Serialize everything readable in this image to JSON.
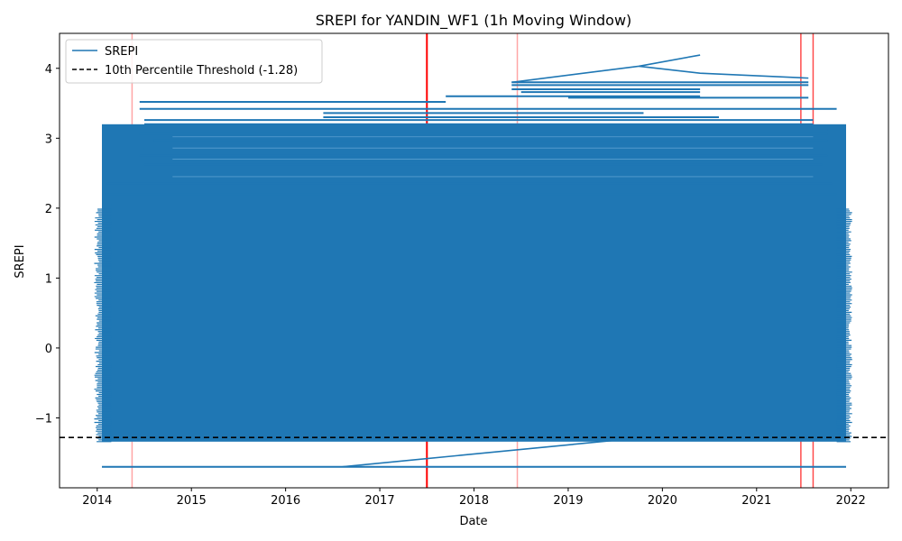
{
  "chart_data": {
    "type": "line",
    "title": "SREPI for YANDIN_WF1 (1h Moving Window)",
    "xlabel": "Date",
    "ylabel": "SREPI",
    "x_ticks": [
      "2014",
      "2015",
      "2016",
      "2017",
      "2018",
      "2019",
      "2020",
      "2021",
      "2022"
    ],
    "x_tick_values": [
      2014,
      2015,
      2016,
      2017,
      2018,
      2019,
      2020,
      2021,
      2022
    ],
    "y_ticks": [
      "−1",
      "0",
      "1",
      "2",
      "3",
      "4"
    ],
    "y_tick_values": [
      -1,
      0,
      1,
      2,
      3,
      4
    ],
    "xlim": [
      2013.6,
      2022.4
    ],
    "ylim": [
      -2.0,
      4.5
    ],
    "grid": false,
    "legend_position": "top-left",
    "series": [
      {
        "name": "SREPI",
        "color": "#1f77b4",
        "style": "solid",
        "band_x_range": [
          2014.05,
          2021.95
        ],
        "band_y_range": [
          -1.34,
          3.2
        ],
        "bottom_line_y": -1.7,
        "outlier_points": [
          {
            "x": 2019.75,
            "y": 4.03
          },
          {
            "x": 2020.4,
            "y": 4.19
          },
          {
            "x": 2020.4,
            "y": 3.93
          },
          {
            "x": 2021.55,
            "y": 3.86
          },
          {
            "x": 2019.5,
            "y": -1.32
          },
          {
            "x": 2016.6,
            "y": -1.7
          }
        ]
      },
      {
        "name": "10th Percentile Threshold (-1.28)",
        "color": "#000000",
        "style": "dashed",
        "y": -1.28
      }
    ],
    "event_lines": [
      {
        "x": 2014.37,
        "color": "#ff0000",
        "strength": "faint"
      },
      {
        "x": 2017.5,
        "color": "#ff0000",
        "strength": "strong"
      },
      {
        "x": 2018.46,
        "color": "#ff0000",
        "strength": "faint"
      },
      {
        "x": 2021.47,
        "color": "#ff0000",
        "strength": "medium"
      },
      {
        "x": 2021.6,
        "color": "#ff0000",
        "strength": "medium"
      }
    ]
  }
}
